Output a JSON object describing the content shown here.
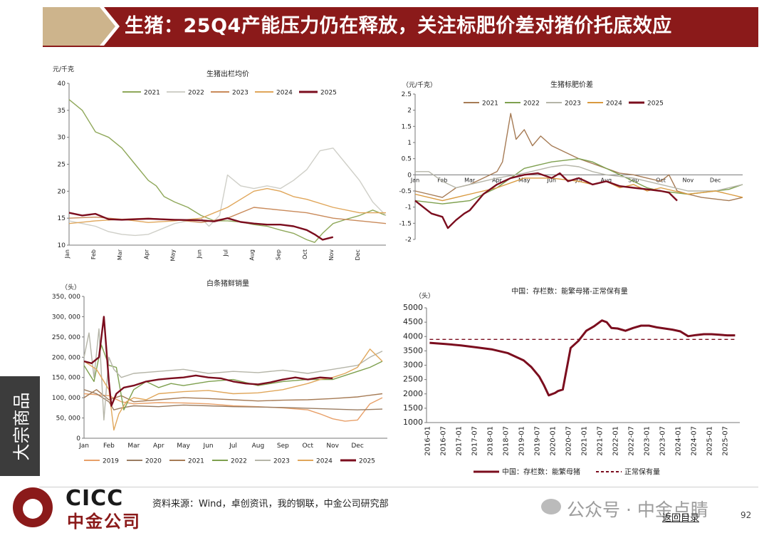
{
  "title": "生猪：25Q4产能压力仍在释放，关注标肥价差对猪价托底效应",
  "side_tab": "大宗商品",
  "footer": {
    "logo_en": "CICC",
    "logo_cn": "中金公司",
    "source": "资料来源：Wind，卓创资讯，我的钢联，中金公司研究部",
    "watermark": "公众号 · 中金点睛",
    "back": "返回目录",
    "page": "92"
  },
  "colors": {
    "c2019": "#e8a069",
    "c2020": "#9a7c61",
    "c2021": "#a67b55",
    "c2022": "#7ea04f",
    "c2023": "#b5b5a8",
    "c2024": "#d99a3f",
    "c2025": "#7b0d1e",
    "c2021b": "#8fa85a",
    "c2022b": "#cfcfc8",
    "c2023b": "#c98a5a",
    "c2024b": "#e0a65a"
  },
  "chart_data": [
    {
      "type": "line",
      "title": "生猪出栏均价",
      "unit_label": "元/千克",
      "ylim": [
        10,
        40
      ],
      "yticks": [
        10,
        15,
        20,
        25,
        30,
        35,
        40
      ],
      "months": [
        "Jan",
        "Feb",
        "Mar",
        "Apr",
        "May",
        "Jun",
        "Jul",
        "Aug",
        "Sep",
        "Oct",
        "Nov",
        "Dec"
      ],
      "series": [
        {
          "name": "2021",
          "color": "#8fa85a",
          "x": [
            0,
            0.5,
            1,
            1.5,
            2,
            2.5,
            3,
            3.3,
            3.6,
            4,
            4.5,
            5,
            5.5,
            6,
            6.5,
            7,
            7.5,
            8,
            8.5,
            9,
            9.3,
            9.6,
            10,
            10.5,
            11,
            11.5,
            12
          ],
          "y": [
            37,
            35,
            31,
            30,
            28,
            25,
            22,
            21,
            19,
            18,
            17,
            15.5,
            14.5,
            14.5,
            14.3,
            13.8,
            13.5,
            12.8,
            12.2,
            11,
            10.5,
            12.2,
            14,
            14.8,
            15.5,
            16.5,
            15.5
          ]
        },
        {
          "name": "2022",
          "color": "#cfcfc8",
          "x": [
            0,
            0.5,
            1,
            1.5,
            2,
            2.5,
            3,
            3.5,
            4,
            4.5,
            5,
            5.3,
            5.7,
            6,
            6.5,
            7,
            7.5,
            8,
            8.5,
            9,
            9.5,
            10,
            10.5,
            11,
            11.5,
            12
          ],
          "y": [
            14.5,
            14,
            13.5,
            12.5,
            12,
            11.8,
            12,
            13,
            14,
            14.5,
            15,
            13.5,
            15.5,
            23,
            21,
            20.5,
            21,
            20.5,
            22,
            24,
            27.5,
            28,
            25,
            22,
            18,
            15.5
          ]
        },
        {
          "name": "2023",
          "color": "#c98a5a",
          "x": [
            0,
            1,
            2,
            3,
            4,
            5,
            6,
            7,
            8,
            9,
            10,
            11,
            12
          ],
          "y": [
            15,
            15.2,
            14.8,
            15,
            14.7,
            14.2,
            15,
            17,
            16.5,
            16,
            15,
            14.5,
            14
          ]
        },
        {
          "name": "2024",
          "color": "#e0a65a",
          "x": [
            0,
            1,
            2,
            3,
            4,
            5,
            6,
            6.5,
            7,
            7.5,
            8,
            8.5,
            9,
            10,
            11,
            12
          ],
          "y": [
            14,
            14.5,
            14.8,
            14.2,
            14.5,
            15,
            17,
            18.5,
            20,
            20.5,
            20,
            19,
            18.5,
            17,
            16,
            16
          ]
        },
        {
          "name": "2025",
          "color": "#7b0d1e",
          "x": [
            0,
            0.5,
            1,
            1.5,
            2,
            3,
            4,
            5,
            5.5,
            6,
            6.5,
            7,
            7.5,
            8,
            8.5,
            9,
            9.3,
            9.6,
            10
          ],
          "y": [
            16,
            15.5,
            15.8,
            14.8,
            14.7,
            14.9,
            14.7,
            14.6,
            14.4,
            15,
            14.3,
            14,
            13.8,
            13.8,
            13.5,
            12.8,
            12,
            11,
            11.5
          ]
        }
      ]
    },
    {
      "type": "line",
      "title": "生猪标肥价差",
      "unit_label": "（元/千克）",
      "ylim": [
        -2,
        2.5
      ],
      "yticks": [
        -2,
        -1.5,
        -1,
        -0.5,
        0,
        0.5,
        1,
        1.5,
        2,
        2.5
      ],
      "months": [
        "Jan",
        "Feb",
        "Mar",
        "Apr",
        "May",
        "Jun",
        "Jul",
        "Aug",
        "Sep",
        "Oct",
        "Nov",
        "Dec"
      ],
      "series": [
        {
          "name": "2021",
          "color": "#a67b55",
          "x": [
            0,
            0.5,
            1,
            1.5,
            2,
            2.5,
            3,
            3.2,
            3.5,
            3.7,
            4,
            4.3,
            4.6,
            5,
            5.5,
            6,
            6.5,
            7,
            7.5,
            8,
            8.5,
            9,
            9.3,
            9.6,
            10,
            10.5,
            11,
            11.5,
            12
          ],
          "y": [
            -0.5,
            -0.6,
            -0.7,
            -0.4,
            -0.3,
            -0.1,
            0.1,
            0.4,
            1.9,
            1.1,
            1.4,
            0.9,
            1.2,
            0.9,
            0.7,
            0.5,
            0.35,
            0.2,
            0.05,
            0.0,
            -0.1,
            -0.2,
            0.0,
            -0.5,
            -0.6,
            -0.7,
            -0.75,
            -0.8,
            -0.7
          ]
        },
        {
          "name": "2022",
          "color": "#7ea04f",
          "x": [
            0,
            1,
            2,
            3,
            4,
            4.5,
            5,
            5.5,
            6,
            6.5,
            7,
            7.5,
            8,
            8.5,
            9,
            9.5,
            10,
            10.5,
            11,
            11.5,
            12
          ],
          "y": [
            -0.8,
            -0.9,
            -0.8,
            -0.4,
            0.2,
            0.3,
            0.4,
            0.45,
            0.5,
            0.4,
            0.2,
            0.0,
            -0.2,
            -0.4,
            -0.5,
            -0.55,
            -0.6,
            -0.55,
            -0.5,
            -0.45,
            -0.3
          ]
        },
        {
          "name": "2023",
          "color": "#b5b5a8",
          "x": [
            0,
            0.5,
            1,
            1.5,
            2,
            3,
            4,
            4.5,
            5,
            5.5,
            6,
            6.5,
            7,
            7.5,
            8,
            9,
            10,
            11,
            12
          ],
          "y": [
            0.1,
            0.1,
            -0.2,
            -0.4,
            -0.3,
            -0.1,
            0.05,
            0.15,
            0.25,
            0.3,
            0.25,
            0.1,
            0.0,
            -0.05,
            -0.1,
            -0.3,
            -0.5,
            -0.5,
            -0.3
          ]
        },
        {
          "name": "2024",
          "color": "#d99a3f",
          "x": [
            0,
            1,
            2,
            3,
            4,
            5,
            6,
            6.5,
            7,
            7.5,
            8,
            8.5,
            9,
            9.5,
            10,
            10.5,
            11,
            11.5,
            12
          ],
          "y": [
            -0.6,
            -0.8,
            -0.6,
            -0.4,
            -0.1,
            -0.1,
            -0.2,
            -0.3,
            -0.2,
            -0.4,
            -0.3,
            -0.5,
            -0.4,
            -0.5,
            -0.6,
            -0.55,
            -0.5,
            -0.6,
            -0.7
          ]
        },
        {
          "name": "2025",
          "color": "#7b0d1e",
          "x": [
            0,
            0.3,
            0.6,
            1,
            1.2,
            1.5,
            1.8,
            2,
            2.5,
            3,
            3.5,
            4,
            4.5,
            5,
            5.3,
            5.6,
            6,
            6.5,
            7,
            7.5,
            8,
            8.5,
            9,
            9.3,
            9.6
          ],
          "y": [
            -0.8,
            -1.0,
            -1.2,
            -1.3,
            -1.65,
            -1.4,
            -1.2,
            -1.1,
            -0.6,
            -0.3,
            -0.1,
            0.0,
            0.05,
            -0.1,
            0.05,
            -0.2,
            -0.1,
            -0.3,
            -0.2,
            -0.35,
            -0.4,
            -0.45,
            -0.5,
            -0.55,
            -0.8
          ]
        }
      ]
    },
    {
      "type": "line",
      "title": "白条猪鲜销量",
      "unit_label": "（头）",
      "ylim": [
        0,
        350000
      ],
      "yticks": [
        0,
        50000,
        100000,
        150000,
        200000,
        250000,
        300000,
        350000
      ],
      "ytick_labels": [
        "0",
        "50, 000",
        "100, 000",
        "150, 000",
        "200, 000",
        "250, 000",
        "300, 000",
        "350, 000"
      ],
      "months": [
        "Jan",
        "Feb",
        "Mar",
        "Apr",
        "May",
        "Jun",
        "Jul",
        "Aug",
        "Sep",
        "Oct",
        "Nov",
        "Dec"
      ],
      "series": [
        {
          "name": "2019",
          "color": "#e8a069",
          "x": [
            0,
            1,
            1.5,
            2,
            3,
            4,
            5,
            6,
            7,
            8,
            9,
            9.5,
            10,
            10.5,
            11,
            11.5,
            12
          ],
          "y": [
            110000,
            105000,
            90000,
            85000,
            88000,
            87000,
            85000,
            80000,
            78000,
            75000,
            70000,
            60000,
            48000,
            42000,
            45000,
            85000,
            100000
          ]
        },
        {
          "name": "2020",
          "color": "#9a7c61",
          "x": [
            0,
            0.5,
            1,
            1.2,
            1.5,
            2,
            3,
            4,
            5,
            6,
            7,
            8,
            9,
            10,
            11,
            12
          ],
          "y": [
            120000,
            110000,
            90000,
            70000,
            75000,
            80000,
            78000,
            82000,
            80000,
            78000,
            77000,
            76000,
            74000,
            72000,
            70000,
            72000
          ]
        },
        {
          "name": "2021",
          "color": "#a67b55",
          "x": [
            0,
            0.5,
            1,
            1.5,
            2,
            3,
            4,
            5,
            6,
            7,
            8,
            9,
            10,
            11,
            11.5,
            12
          ],
          "y": [
            100000,
            120000,
            95000,
            105000,
            90000,
            95000,
            100000,
            98000,
            95000,
            92000,
            94000,
            95000,
            98000,
            102000,
            106000,
            110000
          ]
        },
        {
          "name": "2022",
          "color": "#7ea04f",
          "x": [
            0,
            0.4,
            0.7,
            1,
            1.3,
            1.6,
            2,
            2.5,
            3,
            3.5,
            4,
            5,
            6,
            7,
            8,
            9,
            10,
            11,
            11.5,
            12
          ],
          "y": [
            180000,
            140000,
            230000,
            180000,
            175000,
            70000,
            120000,
            140000,
            125000,
            135000,
            130000,
            140000,
            145000,
            130000,
            140000,
            145000,
            145000,
            165000,
            175000,
            190000
          ]
        },
        {
          "name": "2023",
          "color": "#b5b5a8",
          "x": [
            0,
            0.2,
            0.4,
            0.6,
            0.8,
            1,
            1.2,
            1.5,
            2,
            3,
            4,
            5,
            6,
            7,
            8,
            9,
            10,
            11,
            11.5,
            12
          ],
          "y": [
            200000,
            260000,
            150000,
            270000,
            45000,
            200000,
            170000,
            150000,
            160000,
            165000,
            170000,
            160000,
            165000,
            162000,
            168000,
            160000,
            170000,
            180000,
            200000,
            215000
          ]
        },
        {
          "name": "2024",
          "color": "#e0a65a",
          "x": [
            0,
            0.5,
            1,
            1.2,
            1.4,
            1.7,
            2,
            2.5,
            3,
            4,
            5,
            6,
            7,
            8,
            9,
            9.5,
            10,
            10.5,
            11,
            11.5,
            12
          ],
          "y": [
            190000,
            170000,
            120000,
            20000,
            60000,
            90000,
            100000,
            95000,
            110000,
            115000,
            118000,
            110000,
            112000,
            120000,
            135000,
            145000,
            150000,
            160000,
            175000,
            220000,
            190000
          ]
        },
        {
          "name": "2025",
          "color": "#7b0d1e",
          "x": [
            0,
            0.3,
            0.6,
            0.8,
            1,
            1.1,
            1.3,
            1.6,
            2,
            2.5,
            3,
            3.5,
            4,
            4.5,
            5,
            5.5,
            6,
            6.5,
            7,
            7.5,
            8,
            8.5,
            9,
            9.5,
            10
          ],
          "y": [
            190000,
            185000,
            200000,
            300000,
            140000,
            80000,
            110000,
            125000,
            130000,
            140000,
            145000,
            148000,
            150000,
            155000,
            150000,
            148000,
            140000,
            135000,
            133000,
            138000,
            145000,
            150000,
            145000,
            150000,
            148000
          ]
        }
      ]
    },
    {
      "type": "line",
      "title": "中国：存栏数：能繁母猪-正常保有量",
      "unit_label": "（头）",
      "ylim": [
        1000,
        5000
      ],
      "yticks": [
        1000,
        1500,
        2000,
        2500,
        3000,
        3500,
        4000,
        4500,
        5000
      ],
      "x_labels": [
        "2016-01",
        "2016-07",
        "2017-01",
        "2017-07",
        "2018-01",
        "2018-07",
        "2019-01",
        "2019-07",
        "2020-01",
        "2020-07",
        "2021-01",
        "2021-07",
        "2022-01",
        "2022-07",
        "2023-01",
        "2023-07",
        "2024-01",
        "2024-07",
        "2025-01",
        "2025-07"
      ],
      "series": [
        {
          "name": "中国：存栏数：能繁母猪",
          "color": "#7b0d1e",
          "x": [
            0,
            1,
            2,
            3,
            4,
            5,
            6,
            6.5,
            7,
            7.3,
            7.6,
            8,
            8.2,
            8.5,
            9,
            9.5,
            10,
            10.5,
            11,
            11.3,
            11.6,
            12,
            12.5,
            13,
            13.5,
            14,
            14.5,
            15,
            15.5,
            16,
            16.5,
            17,
            17.5,
            18,
            18.5,
            19,
            19.5
          ],
          "y": [
            3780,
            3740,
            3690,
            3620,
            3550,
            3420,
            3170,
            2930,
            2600,
            2300,
            1950,
            2030,
            2100,
            2150,
            3600,
            3850,
            4200,
            4360,
            4560,
            4500,
            4300,
            4280,
            4200,
            4300,
            4380,
            4380,
            4320,
            4280,
            4240,
            4180,
            4010,
            4050,
            4080,
            4080,
            4060,
            4040,
            4040
          ]
        },
        {
          "name": "正常保有量",
          "color": "#7b0d1e",
          "dashed": true,
          "x": [
            0,
            19.5
          ],
          "y": [
            3900,
            3900
          ]
        }
      ]
    }
  ]
}
